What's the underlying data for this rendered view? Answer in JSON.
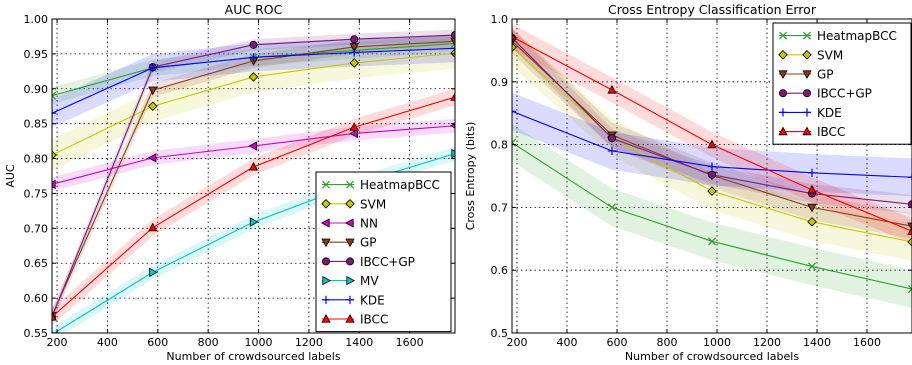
{
  "chart_data": [
    {
      "type": "line",
      "title": "AUC ROC",
      "xlabel": "Number of crowdsourced labels",
      "ylabel": "AUC",
      "xlim": [
        180,
        1780
      ],
      "ylim": [
        0.55,
        1.0
      ],
      "xticks": [
        200,
        400,
        600,
        800,
        1000,
        1200,
        1400,
        1600
      ],
      "yticks": [
        0.55,
        0.6,
        0.65,
        0.7,
        0.75,
        0.8,
        0.85,
        0.9,
        0.95,
        1.0
      ],
      "ytick_labels": [
        "0.55",
        "0.60",
        "0.65",
        "0.70",
        "0.75",
        "0.80",
        "0.85",
        "0.90",
        "0.95",
        "1.00"
      ],
      "grid": true,
      "legend_position": "lower-right",
      "x": [
        180,
        580,
        980,
        1380,
        1780
      ],
      "series": [
        {
          "name": "HeatmapBCC",
          "color": "#2ca02c",
          "marker": "x",
          "values": [
            0.89,
            0.93,
            0.945,
            0.955,
            0.965
          ],
          "band": 0.012
        },
        {
          "name": "SVM",
          "color": "#c8c800",
          "marker": "D",
          "values": [
            0.805,
            0.875,
            0.917,
            0.937,
            0.951
          ],
          "band": 0.022
        },
        {
          "name": "NN",
          "color": "#cc00cc",
          "marker": "<",
          "values": [
            0.763,
            0.801,
            0.818,
            0.836,
            0.847
          ],
          "band": 0.01
        },
        {
          "name": "GP",
          "color": "#8b3a1a",
          "marker": "v",
          "values": [
            0.575,
            0.898,
            0.94,
            0.96,
            0.968
          ],
          "band": 0.01
        },
        {
          "name": "IBCC+GP",
          "color": "#7b1a7b",
          "marker": "o",
          "values": [
            0.573,
            0.931,
            0.963,
            0.971,
            0.977
          ],
          "band": 0.008
        },
        {
          "name": "MV",
          "color": "#00c8c8",
          "marker": ">",
          "values": [
            0.548,
            0.637,
            0.709,
            0.763,
            0.807
          ],
          "band": 0.01
        },
        {
          "name": "KDE",
          "color": "#0000ff",
          "marker": "+",
          "values": [
            0.865,
            0.93,
            0.945,
            0.952,
            0.958
          ],
          "band": 0.02
        },
        {
          "name": "IBCC",
          "color": "#ff0000",
          "marker": "^",
          "values": [
            0.573,
            0.701,
            0.788,
            0.845,
            0.888
          ],
          "band": 0.012
        }
      ],
      "legend_order": [
        "HeatmapBCC",
        "SVM",
        "NN",
        "GP",
        "IBCC+GP",
        "MV",
        "KDE",
        "IBCC"
      ]
    },
    {
      "type": "line",
      "title": "Cross Entropy Classification Error",
      "xlabel": "Number of crowdsourced labels",
      "ylabel": "Cross Entropy (bits)",
      "xlim": [
        180,
        1780
      ],
      "ylim": [
        0.5,
        1.0
      ],
      "xticks": [
        200,
        400,
        600,
        800,
        1000,
        1200,
        1400,
        1600
      ],
      "yticks": [
        0.5,
        0.6,
        0.7,
        0.8,
        0.9,
        1.0
      ],
      "ytick_labels": [
        "0.5",
        "0.6",
        "0.7",
        "0.8",
        "0.9",
        "1.0"
      ],
      "grid": true,
      "legend_position": "upper-right",
      "x": [
        180,
        580,
        980,
        1380,
        1780
      ],
      "series": [
        {
          "name": "HeatmapBCC",
          "color": "#2ca02c",
          "marker": "x",
          "values": [
            0.803,
            0.7,
            0.646,
            0.606,
            0.57
          ],
          "band": 0.03
        },
        {
          "name": "SVM",
          "color": "#c8c800",
          "marker": "D",
          "values": [
            0.955,
            0.812,
            0.726,
            0.677,
            0.645
          ],
          "band": 0.03
        },
        {
          "name": "GP",
          "color": "#8b3a1a",
          "marker": "v",
          "values": [
            0.965,
            0.815,
            0.751,
            0.7,
            0.67
          ],
          "band": 0.02
        },
        {
          "name": "IBCC+GP",
          "color": "#7b1a7b",
          "marker": "o",
          "values": [
            0.97,
            0.81,
            0.752,
            0.722,
            0.705
          ],
          "band": 0.015
        },
        {
          "name": "KDE",
          "color": "#0000ff",
          "marker": "+",
          "values": [
            0.853,
            0.79,
            0.765,
            0.755,
            0.748
          ],
          "band": 0.03
        },
        {
          "name": "IBCC",
          "color": "#ff0000",
          "marker": "^",
          "values": [
            0.972,
            0.887,
            0.8,
            0.728,
            0.662
          ],
          "band": 0.02
        }
      ],
      "legend_order": [
        "HeatmapBCC",
        "SVM",
        "GP",
        "IBCC+GP",
        "KDE",
        "IBCC"
      ]
    }
  ]
}
